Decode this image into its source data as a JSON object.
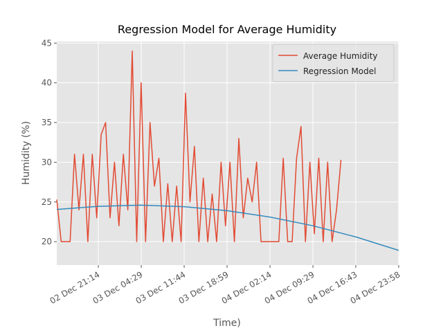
{
  "chart_data": {
    "type": "line",
    "title": "Regression Model for Average Humidity",
    "x_label": "Time)",
    "y_label": "Humidity (%)",
    "grid": true,
    "legend": "upper right",
    "xlim": [
      "02 Dec 14:13",
      "04 Dec 23:58"
    ],
    "xticks": [
      "02 Dec 21:14",
      "03 Dec 04:29",
      "03 Dec 11:44",
      "03 Dec 18:59",
      "04 Dec 02:14",
      "04 Dec 09:29",
      "04 Dec 16:43",
      "04 Dec 23:58"
    ],
    "ylim": [
      17.05,
      45.2
    ],
    "yticks": [
      20,
      25,
      30,
      35,
      40,
      45
    ],
    "series": [
      {
        "name": "Average Humidity",
        "color": "#E24A33",
        "x": [
          "02 Dec 14:13",
          "02 Dec 14:58",
          "02 Dec 15:43",
          "02 Dec 16:28",
          "02 Dec 17:13",
          "02 Dec 17:58",
          "02 Dec 18:43",
          "02 Dec 19:28",
          "02 Dec 20:13",
          "02 Dec 20:58",
          "02 Dec 21:43",
          "02 Dec 22:28",
          "02 Dec 23:13",
          "02 Dec 23:58",
          "03 Dec 00:43",
          "03 Dec 01:28",
          "03 Dec 02:13",
          "03 Dec 02:58",
          "03 Dec 03:43",
          "03 Dec 04:28",
          "03 Dec 05:13",
          "03 Dec 05:58",
          "03 Dec 06:43",
          "03 Dec 07:28",
          "03 Dec 08:13",
          "03 Dec 08:58",
          "03 Dec 09:43",
          "03 Dec 10:28",
          "03 Dec 11:13",
          "03 Dec 11:58",
          "03 Dec 12:43",
          "03 Dec 13:28",
          "03 Dec 14:13",
          "03 Dec 14:58",
          "03 Dec 15:43",
          "03 Dec 16:28",
          "03 Dec 17:13",
          "03 Dec 17:58",
          "03 Dec 18:43",
          "03 Dec 19:28",
          "03 Dec 20:13",
          "03 Dec 20:58",
          "03 Dec 21:43",
          "03 Dec 22:28",
          "03 Dec 23:13",
          "03 Dec 23:58",
          "04 Dec 00:43",
          "04 Dec 01:28",
          "04 Dec 02:13",
          "04 Dec 02:58",
          "04 Dec 03:43",
          "04 Dec 04:28",
          "04 Dec 05:13",
          "04 Dec 05:58",
          "04 Dec 06:43",
          "04 Dec 07:28",
          "04 Dec 08:13",
          "04 Dec 08:58",
          "04 Dec 09:43",
          "04 Dec 10:28",
          "04 Dec 11:13",
          "04 Dec 11:58",
          "04 Dec 12:43",
          "04 Dec 13:28",
          "04 Dec 14:13"
        ],
        "values": [
          25.3,
          20,
          20,
          20,
          31,
          24,
          31,
          20,
          31,
          23,
          33.5,
          35,
          23,
          30,
          22,
          31,
          24,
          44,
          20,
          40,
          20,
          35,
          27,
          30.5,
          20,
          27.3,
          20,
          27,
          20,
          38.7,
          25,
          32,
          20,
          28,
          20,
          26,
          20,
          30,
          22,
          30,
          20,
          33,
          23,
          28,
          25,
          30,
          20,
          20,
          20,
          20,
          20,
          30.5,
          20,
          20,
          30.5,
          34.5,
          20,
          30,
          21,
          30.5,
          20,
          30,
          20,
          24,
          30.3
        ]
      },
      {
        "name": "Regression Model",
        "color": "#348ABD",
        "x": [
          "02 Dec 14:13",
          "02 Dec 21:14",
          "03 Dec 04:29",
          "03 Dec 11:44",
          "03 Dec 18:59",
          "04 Dec 02:14",
          "04 Dec 09:29",
          "04 Dec 16:43",
          "04 Dec 23:58"
        ],
        "values": [
          24.05,
          24.45,
          24.6,
          24.4,
          23.9,
          23.1,
          22.0,
          20.6,
          18.9
        ]
      }
    ]
  }
}
